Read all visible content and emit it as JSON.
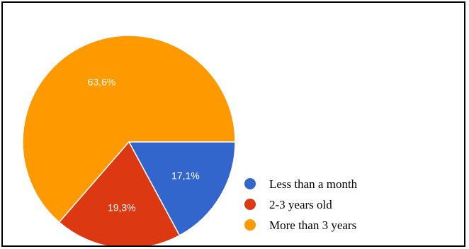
{
  "chart_data": {
    "type": "pie",
    "categories": [
      "Less than a month",
      "2-3 years old",
      "More than 3 years"
    ],
    "values": [
      17.1,
      19.3,
      63.6
    ],
    "data_labels": [
      "17,1%",
      "19,3%",
      "63,6%"
    ],
    "colors": [
      "#3366cc",
      "#dc3912",
      "#ff9900"
    ],
    "legend_position": "right"
  }
}
